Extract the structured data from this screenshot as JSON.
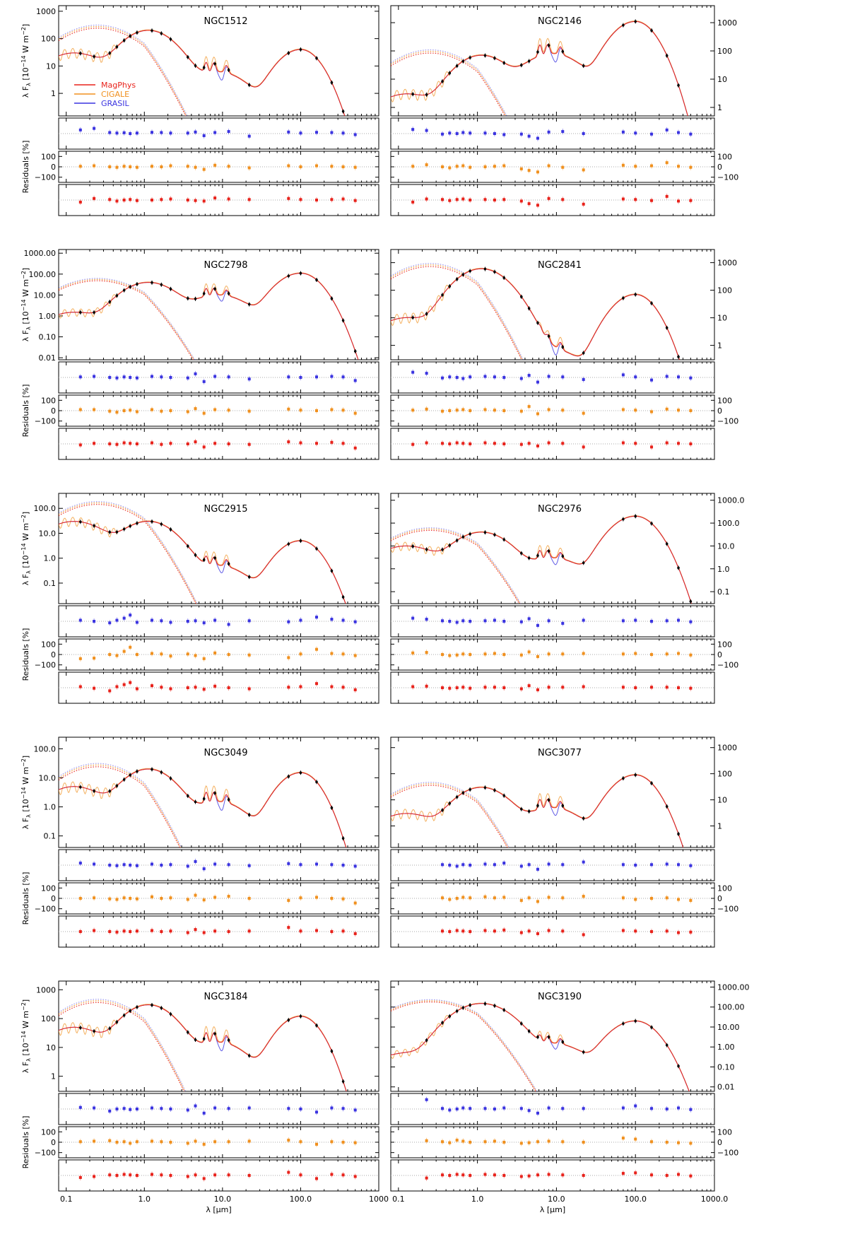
{
  "figure": {
    "xlabel": "λ [μm]",
    "ylabel_sed": "λ F_λ [10^-14 W m^-2]",
    "ylabel_res": "Residuals [%]",
    "x_range": [
      0.08,
      1000
    ],
    "left_xticks": [
      "0.1",
      "1.0",
      "10.0",
      "100.0",
      "1000"
    ],
    "right_xticks": [
      "0.1",
      "1.0",
      "10.0",
      "100.0",
      "1000.0"
    ],
    "residual_ticks": [
      "100",
      "0",
      "−100"
    ],
    "residual_range": [
      -150,
      150
    ],
    "filters_um": [
      0.152,
      0.227,
      0.36,
      0.445,
      0.551,
      0.658,
      0.806,
      1.25,
      1.65,
      2.17,
      3.6,
      4.5,
      5.8,
      8.0,
      12,
      22,
      70,
      100,
      160,
      250,
      350,
      500
    ],
    "legend": [
      {
        "name": "MagPhys",
        "color": "#e8221b"
      },
      {
        "name": "CIGALE",
        "color": "#f0901e"
      },
      {
        "name": "GRASIL",
        "color": "#3a33e0"
      }
    ],
    "colors": {
      "magphys": "#e8221b",
      "cigale": "#f0901e",
      "grasil": "#3a33e0",
      "obs": "#000000",
      "grid": "#aaaaaa"
    }
  },
  "chart_data": [
    {
      "type": "line",
      "title": "NGC1512",
      "ylabels": [
        "1000",
        "100",
        "10",
        "1"
      ],
      "ylim": [
        0.15,
        1600
      ],
      "yscale": "log",
      "peak_opt": 200,
      "peak_ir": 40,
      "dip": 6,
      "uv": 30,
      "residuals": {
        "grasil": [
          35,
          50,
          10,
          5,
          8,
          0,
          5,
          12,
          10,
          5,
          5,
          15,
          -20,
          10,
          20,
          -25,
          15,
          5,
          12,
          10,
          5,
          -10
        ],
        "cigale": [
          5,
          10,
          0,
          -5,
          5,
          0,
          -5,
          5,
          0,
          10,
          5,
          -5,
          -25,
          15,
          5,
          -10,
          10,
          0,
          10,
          5,
          0,
          -5
        ],
        "magphys": [
          -20,
          15,
          5,
          -10,
          0,
          5,
          -5,
          0,
          5,
          10,
          0,
          -5,
          -10,
          20,
          10,
          5,
          15,
          5,
          0,
          5,
          10,
          -5
        ]
      }
    },
    {
      "type": "line",
      "title": "NGC2146",
      "ylabels": [
        "1000",
        "100",
        "10",
        "1"
      ],
      "ylim": [
        0.5,
        4000
      ],
      "yscale": "log",
      "peak_opt": 70,
      "peak_ir": 1100,
      "dip": 80,
      "uv": 3,
      "residuals": {
        "grasil": [
          40,
          30,
          -5,
          5,
          0,
          10,
          5,
          5,
          0,
          -10,
          -5,
          -25,
          -45,
          15,
          20,
          0,
          15,
          5,
          -5,
          35,
          10,
          -5
        ],
        "cigale": [
          5,
          20,
          0,
          -10,
          5,
          10,
          -5,
          0,
          5,
          10,
          -20,
          -35,
          -50,
          10,
          -5,
          -30,
          15,
          5,
          10,
          40,
          5,
          -5
        ],
        "magphys": [
          -20,
          10,
          5,
          -5,
          5,
          10,
          0,
          5,
          0,
          5,
          -10,
          -35,
          -50,
          15,
          5,
          -40,
          10,
          5,
          -5,
          35,
          -10,
          -5
        ]
      }
    },
    {
      "type": "line",
      "title": "NGC2798",
      "ylabels": [
        "1000.00",
        "100.00",
        "10.00",
        "1.00",
        "0.10",
        "0.01"
      ],
      "ylim": [
        0.008,
        1500
      ],
      "yscale": "log",
      "peak_opt": 40,
      "peak_ir": 110,
      "dip": 10,
      "uv": 1.5,
      "residuals": {
        "grasil": [
          5,
          10,
          0,
          -5,
          5,
          0,
          -5,
          10,
          5,
          0,
          -5,
          35,
          -40,
          10,
          5,
          -15,
          5,
          0,
          5,
          10,
          5,
          -30
        ],
        "cigale": [
          10,
          10,
          -5,
          -15,
          0,
          5,
          -10,
          10,
          -5,
          0,
          -10,
          20,
          -25,
          10,
          5,
          -5,
          15,
          5,
          0,
          10,
          5,
          -25
        ],
        "magphys": [
          -10,
          5,
          0,
          -5,
          10,
          5,
          0,
          10,
          -5,
          5,
          0,
          20,
          -30,
          5,
          0,
          -5,
          20,
          10,
          5,
          15,
          5,
          -40
        ]
      }
    },
    {
      "type": "line",
      "title": "NGC2841",
      "ylabels": [
        "1000",
        "100",
        "10",
        "1"
      ],
      "ylim": [
        0.3,
        3000
      ],
      "yscale": "log",
      "peak_opt": 600,
      "peak_ir": 70,
      "dip": 0.7,
      "uv": 10,
      "residuals": {
        "grasil": [
          50,
          40,
          -5,
          5,
          0,
          -10,
          5,
          10,
          5,
          0,
          -10,
          20,
          -45,
          10,
          5,
          -20,
          25,
          5,
          -25,
          10,
          5,
          -5
        ],
        "cigale": [
          5,
          15,
          -5,
          0,
          5,
          10,
          0,
          10,
          5,
          0,
          -5,
          40,
          -30,
          10,
          5,
          -25,
          10,
          5,
          -10,
          15,
          5,
          0
        ],
        "magphys": [
          -5,
          10,
          5,
          0,
          10,
          5,
          0,
          10,
          5,
          0,
          -5,
          5,
          -20,
          10,
          5,
          -30,
          10,
          5,
          -30,
          10,
          5,
          0
        ]
      }
    },
    {
      "type": "line",
      "title": "NGC2915",
      "ylabels": [
        "100.0",
        "10.0",
        "1.0",
        "0.1"
      ],
      "ylim": [
        0.015,
        400
      ],
      "yscale": "log",
      "peak_opt": 30,
      "peak_ir": 5,
      "dip": 0.5,
      "uv": 30,
      "residuals": {
        "grasil": [
          10,
          0,
          -15,
          10,
          30,
          60,
          -10,
          10,
          5,
          -10,
          0,
          5,
          -15,
          10,
          -30,
          5,
          -5,
          10,
          40,
          20,
          10,
          -5
        ],
        "cigale": [
          -40,
          -35,
          0,
          -10,
          30,
          70,
          0,
          10,
          5,
          -15,
          5,
          -10,
          -40,
          15,
          0,
          -5,
          -30,
          5,
          50,
          10,
          5,
          -10
        ],
        "magphys": [
          10,
          -5,
          -30,
          10,
          30,
          50,
          -10,
          20,
          5,
          -10,
          0,
          5,
          -15,
          15,
          0,
          -10,
          5,
          10,
          40,
          10,
          5,
          -20
        ]
      }
    },
    {
      "type": "line",
      "title": "NGC2976",
      "ylabels": [
        "1000.0",
        "100.0",
        "10.0",
        "1.0",
        "0.1"
      ],
      "ylim": [
        0.03,
        2000
      ],
      "yscale": "log",
      "peak_opt": 40,
      "peak_ir": 200,
      "dip": 3,
      "uv": 10,
      "residuals": {
        "grasil": [
          30,
          20,
          5,
          0,
          -10,
          5,
          0,
          5,
          10,
          0,
          -5,
          25,
          -40,
          5,
          -20,
          10,
          5,
          10,
          0,
          5,
          10,
          -5
        ],
        "cigale": [
          15,
          20,
          0,
          -10,
          -5,
          5,
          0,
          5,
          10,
          0,
          -5,
          25,
          -20,
          5,
          5,
          10,
          5,
          10,
          0,
          5,
          10,
          -5
        ],
        "magphys": [
          10,
          15,
          0,
          -5,
          0,
          5,
          -5,
          5,
          5,
          0,
          -10,
          20,
          -20,
          5,
          5,
          10,
          5,
          0,
          5,
          5,
          0,
          -5
        ]
      }
    },
    {
      "type": "line",
      "title": "NGC3049",
      "ylabels": [
        "100.0",
        "10.0",
        "1.0",
        "0.1"
      ],
      "ylim": [
        0.04,
        250
      ],
      "yscale": "log",
      "peak_opt": 20,
      "peak_ir": 15,
      "dip": 1.5,
      "uv": 5,
      "residuals": {
        "grasil": [
          20,
          10,
          0,
          -5,
          5,
          0,
          -5,
          10,
          0,
          5,
          -10,
          35,
          -35,
          10,
          5,
          -5,
          15,
          5,
          10,
          5,
          0,
          -10
        ],
        "cigale": [
          0,
          5,
          -5,
          -10,
          5,
          0,
          -5,
          15,
          0,
          5,
          -10,
          30,
          -15,
          10,
          20,
          0,
          -20,
          5,
          10,
          0,
          -5,
          -45
        ],
        "magphys": [
          0,
          10,
          0,
          -5,
          5,
          0,
          5,
          10,
          0,
          5,
          -10,
          20,
          -10,
          5,
          0,
          5,
          40,
          5,
          10,
          0,
          5,
          -20
        ]
      }
    },
    {
      "type": "line",
      "title": "NGC3077",
      "ylabels": [
        "1000",
        "100",
        "10",
        "1"
      ],
      "ylim": [
        0.15,
        2500
      ],
      "yscale": "log",
      "peak_opt": 30,
      "peak_ir": 90,
      "dip": 5,
      "uv": 3,
      "residuals": {
        "grasil": [
          null,
          null,
          5,
          0,
          -10,
          5,
          0,
          10,
          5,
          20,
          -10,
          5,
          -40,
          10,
          5,
          30,
          5,
          0,
          5,
          10,
          5,
          -5
        ],
        "cigale": [
          null,
          null,
          5,
          -10,
          0,
          10,
          5,
          15,
          5,
          10,
          -20,
          5,
          -30,
          10,
          5,
          20,
          5,
          -10,
          0,
          5,
          -10,
          -20
        ],
        "magphys": [
          null,
          null,
          5,
          0,
          10,
          5,
          0,
          10,
          5,
          15,
          -10,
          5,
          -20,
          10,
          5,
          -30,
          10,
          5,
          0,
          5,
          -10,
          -5
        ]
      }
    },
    {
      "type": "line",
      "title": "NGC3184",
      "ylabels": [
        "1000",
        "100",
        "10",
        "1"
      ],
      "ylim": [
        0.3,
        2000
      ],
      "yscale": "log",
      "peak_opt": 300,
      "peak_ir": 120,
      "dip": 15,
      "uv": 50,
      "residuals": {
        "grasil": [
          15,
          10,
          -20,
          0,
          5,
          -5,
          0,
          10,
          5,
          0,
          -10,
          30,
          -40,
          10,
          5,
          10,
          5,
          0,
          -30,
          10,
          5,
          -10
        ],
        "cigale": [
          5,
          10,
          15,
          0,
          5,
          -10,
          5,
          10,
          5,
          0,
          -10,
          10,
          -20,
          5,
          5,
          10,
          20,
          5,
          -20,
          5,
          0,
          -5
        ],
        "magphys": [
          -20,
          -10,
          5,
          0,
          10,
          5,
          0,
          10,
          5,
          0,
          -10,
          5,
          -30,
          5,
          5,
          0,
          30,
          5,
          -30,
          10,
          5,
          -10
        ]
      }
    },
    {
      "type": "line",
      "title": "NGC3190",
      "ylabels": [
        "1000.00",
        "100.00",
        "10.00",
        "1.00",
        "0.10",
        "0.01"
      ],
      "ylim": [
        0.006,
        2000
      ],
      "yscale": "log",
      "peak_opt": 150,
      "peak_ir": 20,
      "dip": 1.5,
      "uv": 0.5,
      "residuals": {
        "grasil": [
          null,
          90,
          5,
          -10,
          0,
          10,
          5,
          5,
          0,
          10,
          5,
          -15,
          -40,
          10,
          5,
          5,
          10,
          30,
          5,
          0,
          10,
          -5
        ],
        "cigale": [
          null,
          15,
          5,
          -5,
          20,
          10,
          0,
          5,
          10,
          0,
          -10,
          -5,
          5,
          10,
          5,
          0,
          40,
          30,
          5,
          0,
          -5,
          -10
        ],
        "magphys": [
          null,
          -25,
          5,
          0,
          10,
          5,
          0,
          10,
          5,
          0,
          -10,
          -5,
          5,
          10,
          5,
          0,
          20,
          25,
          5,
          0,
          10,
          -5
        ]
      }
    }
  ]
}
